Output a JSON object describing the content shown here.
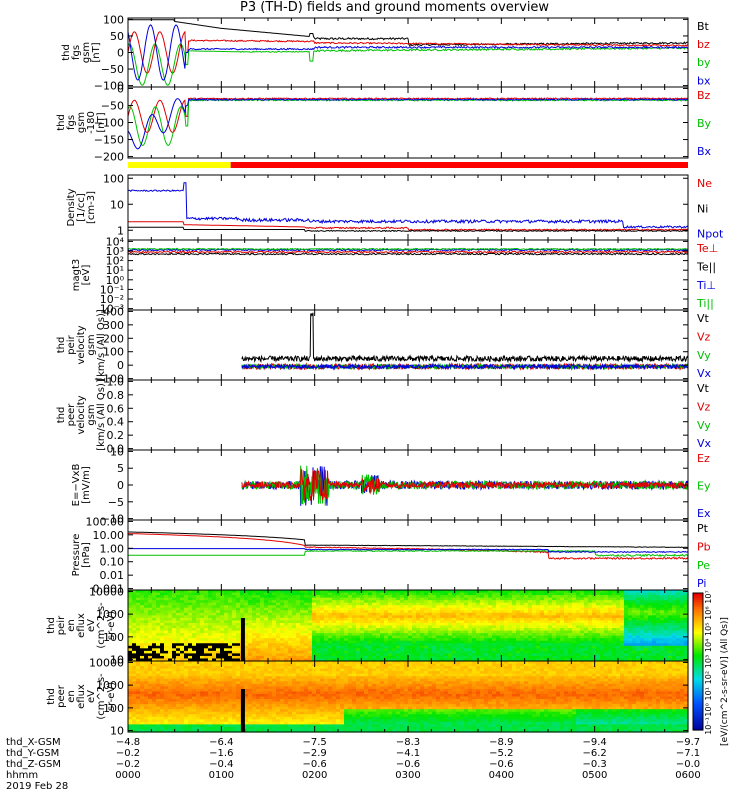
{
  "title": "P3 (TH-D) fields and ground moments overview",
  "colors": {
    "black": "#000000",
    "red": "#e00000",
    "green": "#00c000",
    "blue": "#0000dd",
    "yellow": "#ffff00",
    "barred": "#ff0000"
  },
  "chart_data": [
    {
      "type": "line",
      "panel": "fgs-gsm",
      "ylabel": [
        "thd",
        "fgs",
        "gsm",
        "[nT]"
      ],
      "ylim": [
        -100,
        100
      ],
      "yticks": [
        "100",
        "50",
        "0",
        "−50",
        "−100"
      ],
      "legend": [
        {
          "name": "Bt",
          "color": "black"
        },
        {
          "name": "bz",
          "color": "red"
        },
        {
          "name": "by",
          "color": "green"
        },
        {
          "name": "bx",
          "color": "blue"
        }
      ]
    },
    {
      "type": "line",
      "panel": "fgs-gsm-180",
      "ylabel": [
        "thd",
        "fgs",
        "gsm",
        "-180",
        "[nT]"
      ],
      "ylim": [
        -200,
        0
      ],
      "yticks": [
        "0",
        "−50",
        "−100",
        "−150",
        "−200"
      ],
      "legend": [
        {
          "name": "Bz",
          "color": "red"
        },
        {
          "name": "By",
          "color": "green"
        },
        {
          "name": "Bx",
          "color": "blue"
        }
      ]
    },
    {
      "type": "line",
      "panel": "density",
      "log": true,
      "ylabel": [
        "Density",
        "[1/cc]",
        "[cm-3]"
      ],
      "ylim": [
        0.5,
        200
      ],
      "yticks": [
        "100",
        "10",
        "1"
      ],
      "legend": [
        {
          "name": "Ne",
          "color": "red"
        },
        {
          "name": "Ni",
          "color": "black"
        },
        {
          "name": "Npot",
          "color": "blue"
        }
      ]
    },
    {
      "type": "line",
      "panel": "temperature",
      "log": true,
      "ylabel": [
        "magt3",
        "[eV]"
      ],
      "yticks": [
        "10⁴",
        "10³",
        "10²",
        "10¹",
        "10⁰",
        "10⁻¹",
        "10⁻²",
        "10⁻³"
      ],
      "legend": [
        {
          "name": "Te⊥",
          "color": "red"
        },
        {
          "name": "Te||",
          "color": "black"
        },
        {
          "name": "Ti⊥",
          "color": "blue"
        },
        {
          "name": "Ti||",
          "color": "green"
        }
      ]
    },
    {
      "type": "line",
      "panel": "peir-velocity",
      "ylabel": [
        "thd",
        "peir",
        "velocity",
        "gsm",
        "[km/s (All Qs)]"
      ],
      "ylim": [
        0,
        400
      ],
      "yticks": [
        "400",
        "300",
        "200",
        "100",
        "0",
        "−100"
      ],
      "legend": [
        {
          "name": "Vt",
          "color": "black"
        },
        {
          "name": "Vz",
          "color": "red"
        },
        {
          "name": "Vy",
          "color": "green"
        },
        {
          "name": "Vx",
          "color": "blue"
        }
      ]
    },
    {
      "type": "line",
      "panel": "peer-velocity",
      "ylabel": [
        "thd",
        "peer",
        "velocity",
        "gsm",
        "[km/s (All Qs)]"
      ],
      "ylim": [
        0,
        1
      ],
      "yticks": [
        "1.0",
        "0.8",
        "0.6",
        "0.4",
        "0.2",
        "0.0"
      ],
      "legend": [
        {
          "name": "Vt",
          "color": "black"
        },
        {
          "name": "Vz",
          "color": "red"
        },
        {
          "name": "Vy",
          "color": "green"
        },
        {
          "name": "Vx",
          "color": "blue"
        }
      ]
    },
    {
      "type": "line",
      "panel": "efield",
      "ylabel": [
        "E=−VxB",
        "[mV/m]"
      ],
      "ylim": [
        -10,
        10
      ],
      "yticks": [
        "10",
        "5",
        "0",
        "−5",
        "−10"
      ],
      "legend": [
        {
          "name": "Ez",
          "color": "red"
        },
        {
          "name": "Ey",
          "color": "green"
        },
        {
          "name": "Ex",
          "color": "blue"
        }
      ]
    },
    {
      "type": "line",
      "panel": "pressure",
      "log": true,
      "ylabel": [
        "Pressure",
        "[nPa]"
      ],
      "ylim": [
        0.001,
        100
      ],
      "yticks": [
        "100.00",
        "10.00",
        "1.00",
        "0.10",
        "0.01",
        "0.001"
      ],
      "legend": [
        {
          "name": "Pt",
          "color": "black"
        },
        {
          "name": "Pb",
          "color": "red"
        },
        {
          "name": "Pe",
          "color": "green"
        },
        {
          "name": "Pi",
          "color": "blue"
        }
      ]
    },
    {
      "type": "heatmap",
      "panel": "peir-eflux",
      "ylabel": [
        "thd",
        "peir",
        "en",
        "eflux",
        "eV",
        "(cm^2-s-",
        "sr-eV)"
      ],
      "yticks": [
        "10000",
        "1000",
        "100",
        "10"
      ]
    },
    {
      "type": "heatmap",
      "panel": "peer-eflux",
      "ylabel": [
        "thd",
        "peer",
        "en",
        "eflux",
        "eV",
        "(cm^2-s-",
        "sr-eV)"
      ],
      "yticks": [
        "10000",
        "1000",
        "100",
        "10"
      ]
    }
  ],
  "colorbar": {
    "title": "[eV/(cm^2-s-sr-eV)] (All Qs)]",
    "ticks": [
      "10⁷",
      "10⁶",
      "10⁵",
      "10⁴",
      "10³",
      "10²",
      "10¹",
      "10⁰",
      "10⁻¹"
    ]
  },
  "x_axis": {
    "rows": [
      {
        "label": "thd_X-GSM",
        "values": [
          "−4.8",
          "−6.4",
          "−7.5",
          "−8.3",
          "−8.9",
          "−9.4",
          "−9.7"
        ]
      },
      {
        "label": "thd_Y-GSM",
        "values": [
          "−0.2",
          "−1.6",
          "−2.9",
          "−4.1",
          "−5.2",
          "−6.2",
          "−7.1"
        ]
      },
      {
        "label": "thd_Z-GSM",
        "values": [
          "−0.2",
          "−0.4",
          "−0.6",
          "−0.6",
          "−0.6",
          "−0.3",
          "−0.0"
        ]
      },
      {
        "label": "hhmm",
        "values": [
          "0000",
          "0100",
          "0200",
          "0300",
          "0400",
          "0500",
          "0600"
        ]
      }
    ],
    "date": "2019 Feb 28"
  }
}
